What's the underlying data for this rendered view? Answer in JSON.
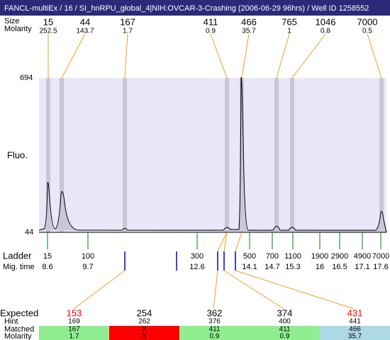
{
  "title": "FANCL-multiEx / 16 / SI_hnRPU_global_4|NIH:OVCAR-3-Crashing (2006-06-29 96hrs) / Well ID 1258552",
  "peaks": {
    "size_label": "Size",
    "molarity_label": "Molarity",
    "sizes": [
      15,
      44,
      167,
      411,
      466,
      765,
      1046,
      7000
    ],
    "molarities": [
      252.5,
      143.7,
      1.7,
      0.9,
      35.7,
      1,
      0.8,
      0.5
    ]
  },
  "axis": {
    "label": "Fluo.",
    "top": 694,
    "bottom": 44
  },
  "ladder": {
    "label": "Ladder",
    "time_label": "Mig. time",
    "sizes": [
      15,
      100,
      300,
      500,
      700,
      1100,
      1900,
      2900,
      4900,
      7000
    ],
    "times": [
      8.6,
      9.7,
      12.6,
      14.1,
      14.7,
      15.3,
      16,
      16.5,
      17.1,
      17.6
    ]
  },
  "table": {
    "expected_label": "Expected",
    "hint_label": "Hint",
    "matched_label": "Matched",
    "molarity_label": "Molarity",
    "expected": [
      153,
      254,
      362,
      374,
      431
    ],
    "expected_colors": [
      "#ff0000",
      "#000000",
      "#000000",
      "#000000",
      "#ff0000"
    ],
    "hint": [
      169,
      262,
      376,
      400,
      441
    ],
    "matched": [
      "167",
      "X",
      "411",
      "411",
      "466"
    ],
    "molarity": [
      "1.7",
      "X",
      "0.9",
      "0.9",
      "35.7"
    ],
    "cell_colors": [
      "#90ee90",
      "#ff0000",
      "#90ee90",
      "#90ee90",
      "#add8e6"
    ]
  }
}
